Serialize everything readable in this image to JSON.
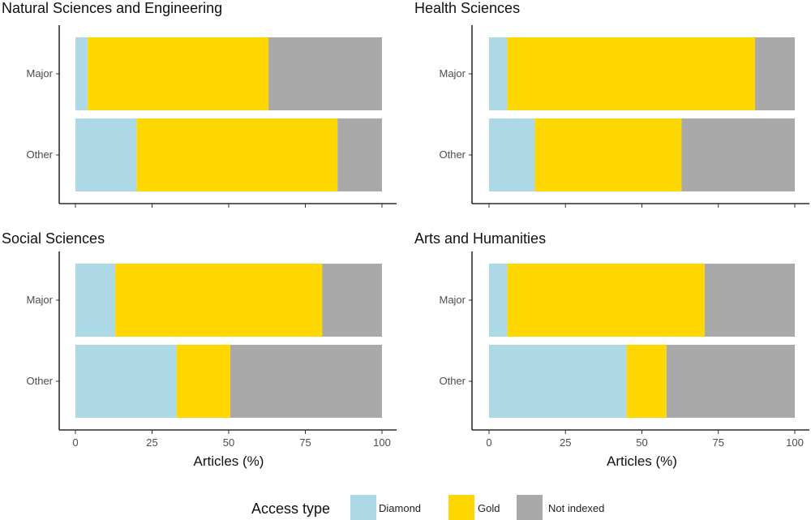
{
  "chart_data": {
    "type": "bar",
    "stacked": "horizontal-percent",
    "xlabel": "Articles (%)",
    "xlim": [
      0,
      100
    ],
    "xticks": [
      "0",
      "25",
      "50",
      "75",
      "100"
    ],
    "categories": [
      "Major",
      "Other"
    ],
    "grid": false,
    "legend": {
      "title": "Access type",
      "placement": "bottom",
      "entries": [
        {
          "name": "Diamond",
          "color": "#ADD8E6"
        },
        {
          "name": "Gold",
          "color": "#FFD700"
        },
        {
          "name": "Not indexed",
          "color": "#A9A9A9"
        }
      ]
    },
    "panels": [
      {
        "title": "Natural Sciences and Engineering",
        "series": [
          {
            "name": "Diamond",
            "values": [
              4,
              20
            ]
          },
          {
            "name": "Gold",
            "values": [
              59,
              65.5
            ]
          },
          {
            "name": "Not indexed",
            "values": [
              37,
              14.5
            ]
          }
        ]
      },
      {
        "title": "Health Sciences",
        "series": [
          {
            "name": "Diamond",
            "values": [
              6,
              15
            ]
          },
          {
            "name": "Gold",
            "values": [
              81,
              48
            ]
          },
          {
            "name": "Not indexed",
            "values": [
              13,
              37
            ]
          }
        ]
      },
      {
        "title": "Social Sciences",
        "series": [
          {
            "name": "Diamond",
            "values": [
              13,
              33
            ]
          },
          {
            "name": "Gold",
            "values": [
              67.5,
              17.5
            ]
          },
          {
            "name": "Not indexed",
            "values": [
              19.5,
              49.5
            ]
          }
        ]
      },
      {
        "title": "Arts and Humanities",
        "series": [
          {
            "name": "Diamond",
            "values": [
              6,
              45
            ]
          },
          {
            "name": "Gold",
            "values": [
              64.5,
              13
            ]
          },
          {
            "name": "Not indexed",
            "values": [
              29.5,
              42
            ]
          }
        ]
      }
    ]
  }
}
